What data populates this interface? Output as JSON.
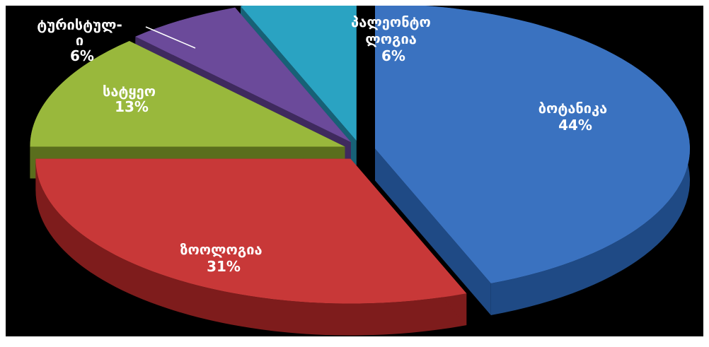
{
  "chart_data": {
    "type": "pie",
    "title": "",
    "slices": [
      {
        "label": "ბოტანიკა",
        "value": 44,
        "value_label": "44%",
        "color": "#3a72c0",
        "side_color": "#1f4a85"
      },
      {
        "label": "ზოოლოგია",
        "value": 31,
        "value_label": "31%",
        "color": "#c83838",
        "side_color": "#7e1c1c"
      },
      {
        "label": "სატყეო",
        "value": 13,
        "value_label": "13%",
        "color": "#99b83c",
        "side_color": "#5a6e1d"
      },
      {
        "label": "ტურისტულ-\nი",
        "value": 6,
        "value_label": "6%",
        "color": "#6b4a9a",
        "side_color": "#3f2a5e"
      },
      {
        "label": "პალეონტო\nლოგია",
        "value": 6,
        "value_label": "6%",
        "color": "#2aa3c2",
        "side_color": "#176176"
      }
    ],
    "legend": "none",
    "exploded": true,
    "three_d": true
  }
}
